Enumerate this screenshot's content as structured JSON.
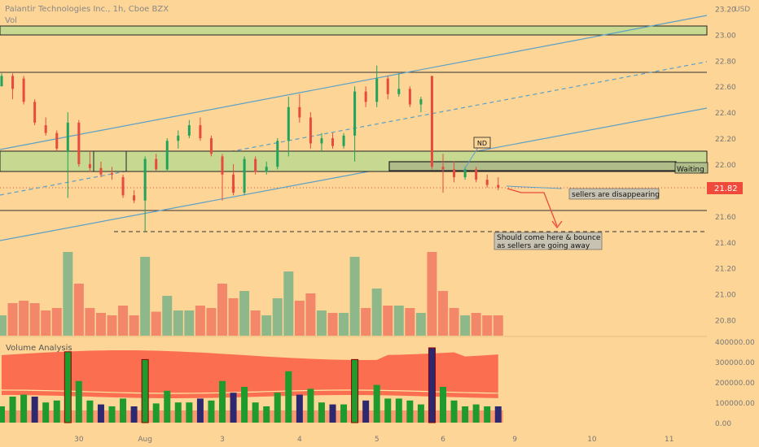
{
  "header": {
    "symbol": "Palantir Technologies Inc., 1h, Cboe BZX",
    "vol_label": "Vol",
    "currency": "USD"
  },
  "price_axis": {
    "ticks": [
      "23.20",
      "23.00",
      "22.80",
      "22.60",
      "22.40",
      "22.20",
      "22.00",
      "21.80",
      "21.60",
      "21.40",
      "21.20",
      "21.00",
      "20.80"
    ],
    "last_price": "21.82"
  },
  "time_axis": {
    "ticks": [
      "30",
      "Aug",
      "3",
      "4",
      "5",
      "6",
      "9",
      "10",
      "11"
    ]
  },
  "annotations": {
    "nd": "ND",
    "waiting": "Waiting",
    "sellers": "sellers are disappearing",
    "bounce_line1": "Should come here & bounce",
    "bounce_line2": "as sellers are going away"
  },
  "volume_panel": {
    "title": "Volume Analysis",
    "ticks": [
      "400000.00",
      "300000.00",
      "200000.00",
      "100000.00",
      "0.00"
    ]
  },
  "colors": {
    "background": "#fdd596",
    "up": "#20a35a",
    "down": "#e84b3c",
    "zone": "#c7d890",
    "channel": "#5aa0c8",
    "band_red": "#fb6e50",
    "last_price_badge": "#f04a3c"
  },
  "chart_data": {
    "type": "candlestick",
    "ylim": [
      20.76,
      23.24
    ],
    "bars_ohlc": [
      [
        22.6,
        22.7,
        22.6,
        22.68
      ],
      [
        22.68,
        22.7,
        22.5,
        22.58
      ],
      [
        22.66,
        22.68,
        22.46,
        22.48
      ],
      [
        22.48,
        22.5,
        22.3,
        22.32
      ],
      [
        22.3,
        22.36,
        22.22,
        22.24
      ],
      [
        22.24,
        22.26,
        22.1,
        22.12
      ],
      [
        22.1,
        22.4,
        21.74,
        22.32
      ],
      [
        22.32,
        22.34,
        21.98,
        22.0
      ],
      [
        22.0,
        22.1,
        21.94,
        21.97
      ],
      [
        21.97,
        22.02,
        21.9,
        21.92
      ],
      [
        21.93,
        21.98,
        21.88,
        21.92
      ],
      [
        21.9,
        21.92,
        21.74,
        21.76
      ],
      [
        21.76,
        21.8,
        21.7,
        21.72
      ],
      [
        21.72,
        22.06,
        21.48,
        22.04
      ],
      [
        22.04,
        22.08,
        21.95,
        21.96
      ],
      [
        21.96,
        22.2,
        21.94,
        22.18
      ],
      [
        22.18,
        22.26,
        22.12,
        22.22
      ],
      [
        22.22,
        22.34,
        22.2,
        22.3
      ],
      [
        22.3,
        22.36,
        22.18,
        22.2
      ],
      [
        22.2,
        22.22,
        22.06,
        22.08
      ],
      [
        22.06,
        22.08,
        21.72,
        21.92
      ],
      [
        21.92,
        22.0,
        21.76,
        21.78
      ],
      [
        21.78,
        22.06,
        21.76,
        22.04
      ],
      [
        22.04,
        22.06,
        21.92,
        21.94
      ],
      [
        21.94,
        22.02,
        21.92,
        21.98
      ],
      [
        21.98,
        22.2,
        21.96,
        22.18
      ],
      [
        22.18,
        22.52,
        22.06,
        22.44
      ],
      [
        22.44,
        22.54,
        22.32,
        22.36
      ],
      [
        22.36,
        22.4,
        22.12,
        22.16
      ],
      [
        22.16,
        22.24,
        22.1,
        22.2
      ],
      [
        22.2,
        22.24,
        22.12,
        22.14
      ],
      [
        22.14,
        22.24,
        22.12,
        22.22
      ],
      [
        22.22,
        22.6,
        22.02,
        22.56
      ],
      [
        22.56,
        22.6,
        22.44,
        22.48
      ],
      [
        22.48,
        22.76,
        22.44,
        22.66
      ],
      [
        22.66,
        22.68,
        22.5,
        22.54
      ],
      [
        22.54,
        22.7,
        22.52,
        22.58
      ],
      [
        22.58,
        22.6,
        22.44,
        22.46
      ],
      [
        22.46,
        22.52,
        22.4,
        22.5
      ],
      [
        22.68,
        22.68,
        21.96,
        21.98
      ],
      [
        21.98,
        22.08,
        21.78,
        21.96
      ],
      [
        21.96,
        22.02,
        21.86,
        21.9
      ],
      [
        21.9,
        21.98,
        21.88,
        21.96
      ],
      [
        21.96,
        21.98,
        21.86,
        21.88
      ],
      [
        21.88,
        21.92,
        21.82,
        21.84
      ],
      [
        21.84,
        21.9,
        21.8,
        21.82
      ]
    ]
  }
}
